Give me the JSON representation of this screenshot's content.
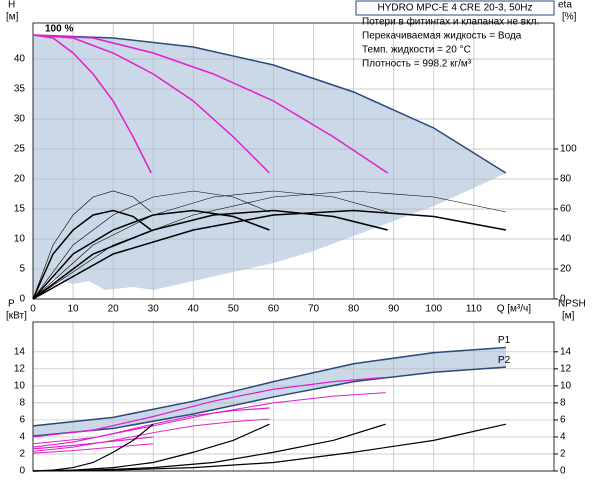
{
  "header": {
    "title": "HYDRO MPC-E 4 CRE 20-3, 50Hz",
    "notes": [
      "Потери в фитингах и клапанах не вкл.",
      "Перекачиваемая жидкость = Вода",
      "Темп. жидкости = 20 °C",
      "Плотность = 998.2 кг/м³"
    ]
  },
  "chart_data": [
    {
      "type": "line",
      "y_label": [
        "H",
        "[м]"
      ],
      "y2_label": [
        "eta",
        "[%]"
      ],
      "x_label": "Q [м³/ч]",
      "grid": true,
      "xlim": [
        0,
        130
      ],
      "xticks": [
        0,
        10,
        20,
        30,
        40,
        50,
        60,
        70,
        80,
        90,
        100,
        110
      ],
      "ylim": [
        0,
        46
      ],
      "yticks": [
        0,
        5,
        10,
        15,
        20,
        25,
        30,
        35,
        40
      ],
      "y2lim": [
        0,
        184
      ],
      "y2ticks": [
        0,
        20,
        40,
        60,
        80,
        100
      ],
      "shade": {
        "color": "#cad8e8",
        "x": [
          0,
          5,
          10,
          14,
          18,
          25,
          30,
          40,
          50,
          60,
          70,
          80,
          90,
          100,
          110,
          118
        ],
        "values": [
          0,
          3.5,
          2.5,
          3,
          1.5,
          2,
          1.5,
          3,
          4.5,
          6,
          8,
          10.5,
          13,
          15.5,
          18.5,
          21
        ]
      },
      "series": [
        {
          "label": "100 %",
          "color": "#2a4a7a",
          "line_width": 1.5,
          "x": [
            0,
            20,
            40,
            60,
            80,
            100,
            118
          ],
          "values": [
            44,
            43.5,
            42,
            39,
            34.5,
            28.5,
            21
          ]
        },
        {
          "color": "#e020d0",
          "line_width": 1.5,
          "x": [
            0,
            5,
            10,
            15,
            20,
            25,
            29.5
          ],
          "values": [
            44,
            43.5,
            41,
            37.5,
            33,
            27,
            21
          ]
        },
        {
          "color": "#e020d0",
          "line_width": 1.5,
          "x": [
            0,
            10,
            20,
            30,
            40,
            50,
            59
          ],
          "values": [
            44,
            43.5,
            41,
            37.5,
            33,
            27,
            21
          ]
        },
        {
          "color": "#e020d0",
          "line_width": 1.5,
          "x": [
            0,
            15,
            30,
            45,
            60,
            75,
            88.5
          ],
          "values": [
            44,
            43.5,
            41,
            37.5,
            33,
            27,
            21
          ]
        },
        {
          "color": "#000000",
          "line_width": 1.5,
          "axis": "y2",
          "x": [
            0,
            5,
            10,
            15,
            20,
            25,
            29.5
          ],
          "values": [
            0,
            30,
            46,
            56,
            59,
            55,
            46
          ]
        },
        {
          "color": "#000000",
          "line_width": 1.5,
          "axis": "y2",
          "x": [
            0,
            10,
            20,
            30,
            40,
            50,
            59
          ],
          "values": [
            0,
            30,
            46,
            56,
            59,
            55,
            46
          ]
        },
        {
          "color": "#000000",
          "line_width": 1.5,
          "axis": "y2",
          "x": [
            0,
            15,
            30,
            45,
            60,
            75,
            88.5
          ],
          "values": [
            0,
            30,
            46,
            56,
            59,
            55,
            46
          ]
        },
        {
          "color": "#000000",
          "line_width": 1.5,
          "axis": "y2",
          "x": [
            0,
            20,
            40,
            60,
            80,
            100,
            118
          ],
          "values": [
            0,
            30,
            46,
            56,
            59,
            55,
            46
          ]
        },
        {
          "color": "#000000",
          "line_width": 0.6,
          "axis": "y2",
          "x": [
            0,
            5,
            10,
            15,
            20,
            25,
            29.5
          ],
          "values": [
            0,
            36,
            56,
            68,
            72,
            68,
            58
          ]
        },
        {
          "color": "#000000",
          "line_width": 0.6,
          "axis": "y2",
          "x": [
            0,
            10,
            20,
            30,
            40,
            50,
            59
          ],
          "values": [
            0,
            36,
            56,
            68,
            72,
            68,
            58
          ]
        },
        {
          "color": "#000000",
          "line_width": 0.6,
          "axis": "y2",
          "x": [
            0,
            15,
            30,
            45,
            60,
            75,
            88.5
          ],
          "values": [
            0,
            36,
            56,
            68,
            72,
            68,
            58
          ]
        },
        {
          "color": "#000000",
          "line_width": 0.6,
          "axis": "y2",
          "x": [
            0,
            20,
            40,
            60,
            80,
            100,
            118
          ],
          "values": [
            0,
            36,
            56,
            68,
            72,
            68,
            58
          ]
        }
      ]
    },
    {
      "type": "line",
      "y_label": [
        "P",
        "[кВт]"
      ],
      "y2_label": [
        "NPSH",
        "[м]"
      ],
      "grid": true,
      "xlim": [
        0,
        130
      ],
      "xticks": [
        0,
        10,
        20,
        30,
        40,
        50,
        60,
        70,
        80,
        90,
        100,
        110
      ],
      "ylim": [
        0,
        17.5
      ],
      "yticks": [
        0,
        2,
        4,
        6,
        8,
        10,
        12,
        14
      ],
      "y2lim": [
        0,
        17.5
      ],
      "y2ticks": [
        0,
        2,
        4,
        6,
        8,
        10,
        12,
        14
      ],
      "shade": {
        "color": "#cad8e8",
        "between": [
          0,
          1
        ]
      },
      "series": [
        {
          "name": "P1",
          "color": "#2a4a7a",
          "line_width": 1.5,
          "x": [
            0,
            20,
            40,
            60,
            80,
            100,
            118
          ],
          "values": [
            5.3,
            6.3,
            8.2,
            10.5,
            12.6,
            13.9,
            14.5
          ]
        },
        {
          "name": "P2",
          "color": "#2a4a7a",
          "line_width": 1.5,
          "x": [
            0,
            20,
            40,
            60,
            80,
            100,
            118
          ],
          "values": [
            4.1,
            5,
            6.7,
            8.7,
            10.5,
            11.6,
            12.2
          ]
        },
        {
          "color": "#e020d0",
          "line_width": 1.2,
          "x": [
            0,
            15,
            30,
            45,
            60,
            75,
            88
          ],
          "values": [
            4,
            4.8,
            6.4,
            8.2,
            9.6,
            10.5,
            11
          ]
        },
        {
          "color": "#e020d0",
          "line_width": 1,
          "x": [
            0,
            15,
            30,
            45,
            60,
            75,
            88
          ],
          "values": [
            3.2,
            3.9,
            5.3,
            6.8,
            8,
            8.8,
            9.2
          ]
        },
        {
          "color": "#e020d0",
          "line_width": 1.2,
          "x": [
            0,
            10,
            20,
            30,
            40,
            50,
            59
          ],
          "values": [
            2.8,
            3.4,
            4.4,
            5.5,
            6.5,
            7.1,
            7.4
          ]
        },
        {
          "color": "#e020d0",
          "line_width": 1,
          "x": [
            0,
            10,
            20,
            30,
            40,
            50,
            59
          ],
          "values": [
            2.3,
            2.8,
            3.6,
            4.5,
            5.3,
            5.8,
            6.1
          ]
        },
        {
          "color": "#e020d0",
          "line_width": 1.2,
          "x": [
            0,
            10,
            20,
            30
          ],
          "values": [
            2.6,
            3,
            3.5,
            4
          ]
        },
        {
          "color": "#e020d0",
          "line_width": 1,
          "x": [
            0,
            10,
            20,
            30
          ],
          "values": [
            2.1,
            2.4,
            2.8,
            3.2
          ]
        },
        {
          "color": "#000000",
          "line_width": 1.2,
          "axis": "y2",
          "x": [
            0,
            5,
            10,
            15,
            20,
            25,
            30
          ],
          "values": [
            0,
            0.1,
            0.4,
            1,
            2.2,
            3.6,
            5.5
          ]
        },
        {
          "color": "#000000",
          "line_width": 1.2,
          "axis": "y2",
          "x": [
            0,
            10,
            20,
            30,
            40,
            50,
            59
          ],
          "values": [
            0,
            0.1,
            0.4,
            1,
            2.2,
            3.6,
            5.5
          ]
        },
        {
          "color": "#000000",
          "line_width": 1.2,
          "axis": "y2",
          "x": [
            0,
            15,
            30,
            45,
            60,
            75,
            88
          ],
          "values": [
            0,
            0.1,
            0.4,
            1,
            2.2,
            3.6,
            5.5
          ]
        },
        {
          "color": "#000000",
          "line_width": 1.2,
          "axis": "y2",
          "x": [
            0,
            20,
            40,
            60,
            80,
            100,
            118
          ],
          "values": [
            0,
            0.1,
            0.4,
            1,
            2.2,
            3.6,
            5.5
          ]
        }
      ]
    }
  ]
}
